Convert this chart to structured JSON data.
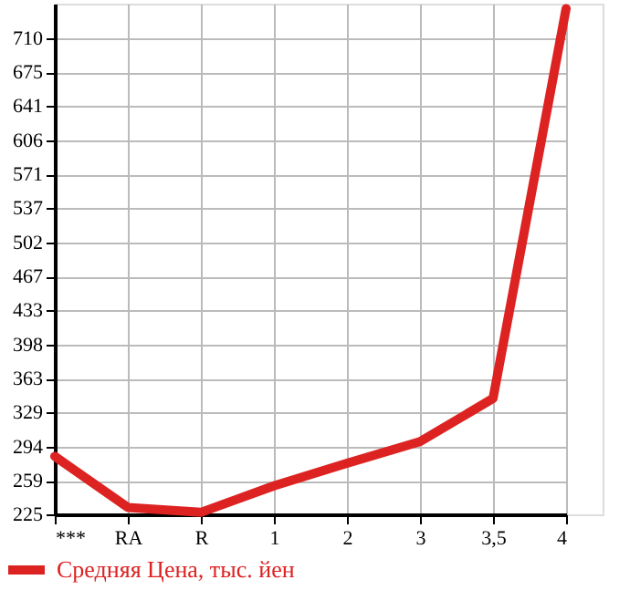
{
  "chart_data": {
    "type": "line",
    "categories": [
      "***",
      "RA",
      "R",
      "1",
      "2",
      "3",
      "3,5",
      "4"
    ],
    "series": [
      {
        "name": "Средняя Цена, тыс. йен",
        "color": "#dd2222",
        "values": [
          284,
          232,
          227,
          254,
          277,
          299,
          343,
          740
        ]
      }
    ],
    "ylim": [
      225,
      745
    ],
    "yticks": [
      225,
      259,
      294,
      329,
      363,
      398,
      433,
      467,
      502,
      537,
      571,
      606,
      641,
      675,
      710
    ],
    "grid": true,
    "legend": "bottom left",
    "marker": "none",
    "line_style": "solid"
  }
}
